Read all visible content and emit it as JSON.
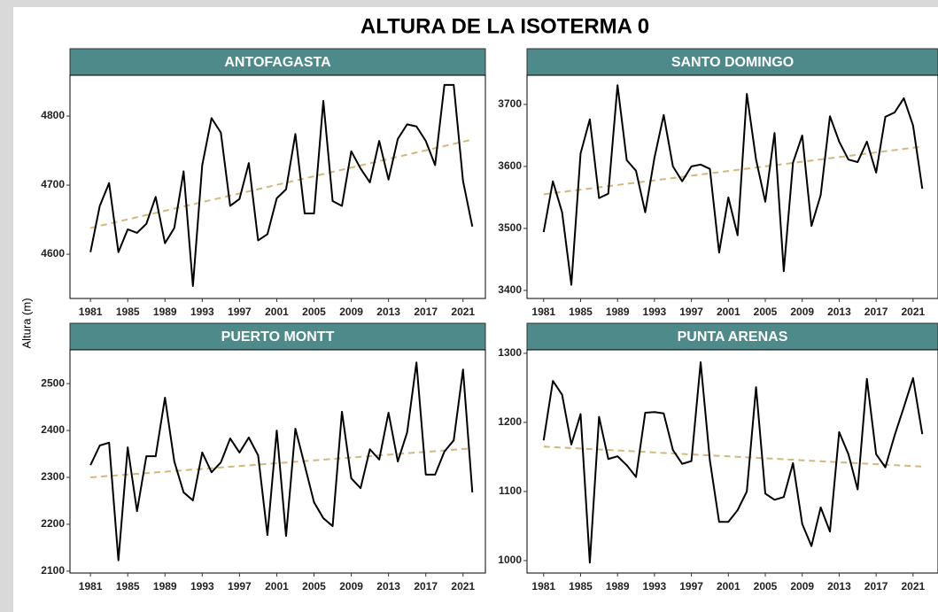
{
  "title": "ALTURA DE LA ISOTERMA 0",
  "y_label": "Altura (m)",
  "chart_data": [
    {
      "type": "line",
      "title": "ANTOFAGASTA",
      "strip_color": "#4e8a8a",
      "x": [
        1981,
        1982,
        1983,
        1984,
        1985,
        1986,
        1987,
        1988,
        1989,
        1990,
        1991,
        1992,
        1993,
        1994,
        1995,
        1996,
        1997,
        1998,
        1999,
        2000,
        2001,
        2002,
        2003,
        2004,
        2005,
        2006,
        2007,
        2008,
        2009,
        2010,
        2011,
        2012,
        2013,
        2014,
        2015,
        2016,
        2017,
        2018,
        2019,
        2020,
        2021,
        2022
      ],
      "values": [
        4603,
        4670,
        4703,
        4603,
        4636,
        4631,
        4644,
        4683,
        4616,
        4638,
        4720,
        4554,
        4729,
        4797,
        4776,
        4670,
        4680,
        4732,
        4620,
        4629,
        4681,
        4694,
        4774,
        4659,
        4659,
        4822,
        4677,
        4670,
        4749,
        4724,
        4704,
        4764,
        4708,
        4767,
        4788,
        4785,
        4764,
        4729,
        4845,
        4845,
        4706,
        4640
      ],
      "color": "#000000",
      "trend": {
        "x": [
          1981,
          2022
        ],
        "values": [
          4638,
          4766
        ],
        "color": "#d4b77a"
      },
      "xlim": [
        1978.8,
        2023.4
      ],
      "xticks": [
        1981,
        1985,
        1989,
        1993,
        1997,
        2001,
        2005,
        2009,
        2013,
        2017,
        2021
      ],
      "ylim": [
        4536,
        4859
      ],
      "yticks": [
        4600,
        4700,
        4800
      ]
    },
    {
      "type": "line",
      "title": "SANTO DOMINGO",
      "strip_color": "#4e8a8a",
      "x": [
        1981,
        1982,
        1983,
        1984,
        1985,
        1986,
        1987,
        1988,
        1989,
        1990,
        1991,
        1992,
        1993,
        1994,
        1995,
        1996,
        1997,
        1998,
        1999,
        2000,
        2001,
        2002,
        2003,
        2004,
        2005,
        2006,
        2007,
        2008,
        2009,
        2010,
        2011,
        2012,
        2013,
        2014,
        2015,
        2016,
        2017,
        2018,
        2019,
        2020,
        2021,
        2022
      ],
      "values": [
        3494,
        3576,
        3526,
        3409,
        3621,
        3676,
        3549,
        3556,
        3731,
        3610,
        3593,
        3526,
        3614,
        3683,
        3600,
        3576,
        3600,
        3603,
        3596,
        3461,
        3550,
        3489,
        3717,
        3611,
        3543,
        3654,
        3431,
        3606,
        3650,
        3504,
        3554,
        3681,
        3640,
        3611,
        3607,
        3640,
        3590,
        3680,
        3687,
        3710,
        3666,
        3564
      ],
      "color": "#000000",
      "trend": {
        "x": [
          1981,
          2022
        ],
        "values": [
          3555,
          3632
        ],
        "color": "#d4b77a"
      },
      "xlim": [
        1979.2,
        2023.7
      ],
      "xticks": [
        1981,
        1985,
        1989,
        1993,
        1997,
        2001,
        2005,
        2009,
        2013,
        2017,
        2021
      ],
      "ylim": [
        3387,
        3747
      ],
      "yticks": [
        3400,
        3500,
        3600,
        3700
      ]
    },
    {
      "type": "line",
      "title": "PUERTO MONTT",
      "strip_color": "#4e8a8a",
      "x": [
        1981,
        1982,
        1983,
        1984,
        1985,
        1986,
        1987,
        1988,
        1989,
        1990,
        1991,
        1992,
        1993,
        1994,
        1995,
        1996,
        1997,
        1998,
        1999,
        2000,
        2001,
        2002,
        2003,
        2004,
        2005,
        2006,
        2007,
        2008,
        2009,
        2010,
        2011,
        2012,
        2013,
        2014,
        2015,
        2016,
        2017,
        2018,
        2019,
        2020,
        2021,
        2022
      ],
      "values": [
        2326,
        2368,
        2374,
        2123,
        2364,
        2228,
        2345,
        2345,
        2470,
        2334,
        2268,
        2251,
        2353,
        2311,
        2332,
        2383,
        2353,
        2385,
        2347,
        2177,
        2400,
        2175,
        2404,
        2326,
        2247,
        2213,
        2196,
        2440,
        2298,
        2277,
        2360,
        2338,
        2438,
        2334,
        2396,
        2545,
        2306,
        2306,
        2355,
        2379,
        2530,
        2268
      ],
      "color": "#000000",
      "trend": {
        "x": [
          1981,
          2022
        ],
        "values": [
          2300,
          2362
        ],
        "color": "#d4b77a"
      },
      "xlim": [
        1978.8,
        2023.4
      ],
      "xticks": [
        1981,
        1985,
        1989,
        1993,
        1997,
        2001,
        2005,
        2009,
        2013,
        2017,
        2021
      ],
      "ylim": [
        2096,
        2572
      ],
      "yticks": [
        2100,
        2200,
        2300,
        2400,
        2500
      ]
    },
    {
      "type": "line",
      "title": "PUNTA ARENAS",
      "strip_color": "#4e8a8a",
      "x": [
        1981,
        1982,
        1983,
        1984,
        1985,
        1986,
        1987,
        1988,
        1989,
        1990,
        1991,
        1992,
        1993,
        1994,
        1995,
        1996,
        1997,
        1998,
        1999,
        2000,
        2001,
        2002,
        2003,
        2004,
        2005,
        2006,
        2007,
        2008,
        2009,
        2010,
        2011,
        2012,
        2013,
        2014,
        2015,
        2016,
        2017,
        2018,
        2019,
        2020,
        2021,
        2022
      ],
      "values": [
        1174,
        1260,
        1240,
        1168,
        1212,
        997,
        1208,
        1147,
        1151,
        1138,
        1121,
        1214,
        1215,
        1213,
        1160,
        1140,
        1144,
        1287,
        1145,
        1056,
        1056,
        1073,
        1100,
        1251,
        1097,
        1088,
        1092,
        1141,
        1053,
        1021,
        1077,
        1042,
        1186,
        1154,
        1103,
        1263,
        1154,
        1135,
        1181,
        1222,
        1264,
        1183
      ],
      "color": "#000000",
      "trend": {
        "x": [
          1981,
          2022
        ],
        "values": [
          1165,
          1136
        ],
        "color": "#d4b77a"
      },
      "xlim": [
        1979.2,
        2023.7
      ],
      "xticks": [
        1981,
        1985,
        1989,
        1993,
        1997,
        2001,
        2005,
        2009,
        2013,
        2017,
        2021
      ],
      "ylim": [
        982,
        1305
      ],
      "yticks": [
        1000,
        1100,
        1200,
        1300
      ]
    }
  ]
}
